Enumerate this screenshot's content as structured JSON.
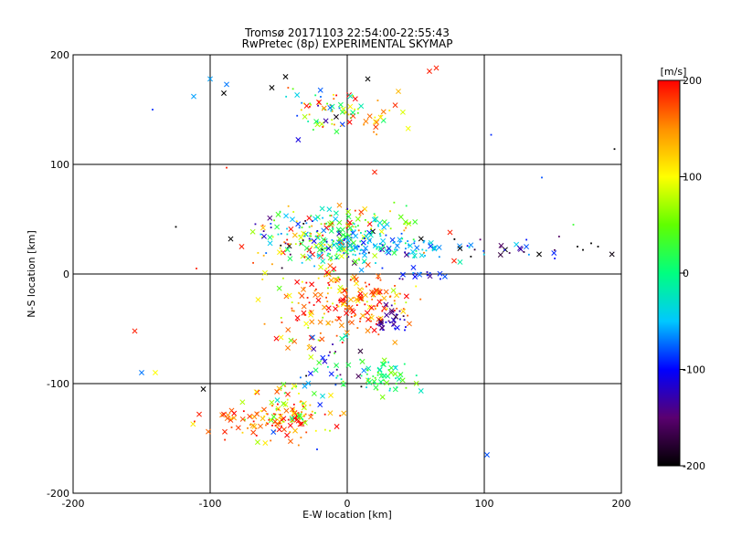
{
  "chart_data": {
    "type": "scatter",
    "title": "Tromsø 20171103 22:54:00-22:55:43",
    "subtitle": "RwPretec (8p) EXPERIMENTAL SKYMAP",
    "xlabel": "E-W location [km]",
    "ylabel": "N-S location [km]",
    "xlim": [
      -200,
      200
    ],
    "ylim": [
      -200,
      200
    ],
    "x_ticks": [
      "-200",
      "-100",
      "0",
      "100",
      "200"
    ],
    "y_ticks": [
      "-200",
      "-100",
      "0",
      "100",
      "200"
    ],
    "grid_lines": [
      -100,
      0,
      100
    ],
    "colorbar": {
      "label": "[m/s]",
      "range": [
        -200,
        200
      ],
      "ticks": [
        "200",
        "100",
        "0",
        "-100",
        "-200"
      ],
      "colors": [
        "#000000",
        "#5a0070",
        "#0000ff",
        "#00c8ff",
        "#00ff80",
        "#60ff00",
        "#ffff00",
        "#ff9000",
        "#ff0000"
      ]
    },
    "clusters": [
      {
        "x": -25,
        "y": 35,
        "sx": 22,
        "sy": 12,
        "n": 160,
        "v": 40,
        "sv": 120
      },
      {
        "x": 0,
        "y": 25,
        "sx": 12,
        "sy": 12,
        "n": 110,
        "v": -30,
        "sv": 60
      },
      {
        "x": 40,
        "y": 25,
        "sx": 18,
        "sy": 5,
        "n": 70,
        "v": -50,
        "sv": 30
      },
      {
        "x": 8,
        "y": -25,
        "sx": 20,
        "sy": 14,
        "n": 160,
        "v": 160,
        "sv": 40
      },
      {
        "x": 32,
        "y": -40,
        "sx": 6,
        "sy": 6,
        "n": 30,
        "v": -130,
        "sv": 20
      },
      {
        "x": -35,
        "y": -30,
        "sx": 18,
        "sy": 20,
        "n": 60,
        "v": 150,
        "sv": 60
      },
      {
        "x": -55,
        "y": -135,
        "sx": 22,
        "sy": 9,
        "n": 110,
        "v": 170,
        "sv": 50
      },
      {
        "x": -40,
        "y": -120,
        "sx": 12,
        "sy": 10,
        "n": 50,
        "v": 80,
        "sv": 60
      },
      {
        "x": 25,
        "y": -92,
        "sx": 12,
        "sy": 8,
        "n": 55,
        "v": 20,
        "sv": 30
      },
      {
        "x": -10,
        "y": -85,
        "sx": 14,
        "sy": 15,
        "n": 40,
        "v": -60,
        "sv": 90
      },
      {
        "x": -20,
        "y": 150,
        "sx": 14,
        "sy": 10,
        "n": 55,
        "v": 60,
        "sv": 110
      },
      {
        "x": 15,
        "y": 145,
        "sx": 14,
        "sy": 8,
        "n": 35,
        "v": 130,
        "sv": 70
      },
      {
        "x": 110,
        "y": 22,
        "sx": 40,
        "sy": 6,
        "n": 35,
        "v": -120,
        "sv": 90
      },
      {
        "x": 20,
        "y": 50,
        "sx": 15,
        "sy": 8,
        "n": 30,
        "v": 80,
        "sv": 60
      },
      {
        "x": 50,
        "y": 0,
        "sx": 10,
        "sy": 3,
        "n": 18,
        "v": -100,
        "sv": 30
      }
    ],
    "outliers": [
      {
        "x": -155,
        "y": -52,
        "v": 190,
        "m": "x"
      },
      {
        "x": -150,
        "y": -90,
        "v": -70,
        "m": "x"
      },
      {
        "x": -140,
        "y": -90,
        "v": 100,
        "m": "x"
      },
      {
        "x": -105,
        "y": -105,
        "v": -200,
        "m": "x"
      },
      {
        "x": -100,
        "y": 178,
        "v": -60,
        "m": "x"
      },
      {
        "x": -112,
        "y": 162,
        "v": -60,
        "m": "x"
      },
      {
        "x": -90,
        "y": 165,
        "v": -200,
        "m": "x"
      },
      {
        "x": -88,
        "y": 173,
        "v": -70,
        "m": "x"
      },
      {
        "x": -55,
        "y": 170,
        "v": -200,
        "m": "x"
      },
      {
        "x": -45,
        "y": 180,
        "v": -200,
        "m": "x"
      },
      {
        "x": 60,
        "y": 185,
        "v": 190,
        "m": "x"
      },
      {
        "x": 65,
        "y": 188,
        "v": 190,
        "m": "x"
      },
      {
        "x": 15,
        "y": 178,
        "v": -200,
        "m": "x"
      },
      {
        "x": 102,
        "y": -165,
        "v": -80,
        "m": "x"
      },
      {
        "x": 20,
        "y": 93,
        "v": 190,
        "m": "x"
      },
      {
        "x": -90,
        "y": -128,
        "v": 190,
        "m": "x"
      },
      {
        "x": -108,
        "y": -128,
        "v": 190,
        "m": "x"
      },
      {
        "x": -85,
        "y": 32,
        "v": -200,
        "m": "x"
      },
      {
        "x": -77,
        "y": 25,
        "v": 190,
        "m": "x"
      },
      {
        "x": 75,
        "y": 38,
        "v": 190,
        "m": "x"
      },
      {
        "x": 78,
        "y": 12,
        "v": 190,
        "m": "x"
      },
      {
        "x": -142,
        "y": 150,
        "v": -90,
        "m": "d"
      },
      {
        "x": -125,
        "y": 43,
        "v": -200,
        "m": "d"
      },
      {
        "x": -88,
        "y": 97,
        "v": 190,
        "m": "d"
      },
      {
        "x": 105,
        "y": 127,
        "v": -90,
        "m": "d"
      },
      {
        "x": 142,
        "y": 88,
        "v": -80,
        "m": "d"
      },
      {
        "x": 195,
        "y": 114,
        "v": -200,
        "m": "d"
      },
      {
        "x": 165,
        "y": 45,
        "v": 30,
        "m": "d"
      },
      {
        "x": 168,
        "y": 25,
        "v": -200,
        "m": "d"
      },
      {
        "x": 172,
        "y": 22,
        "v": -200,
        "m": "d"
      },
      {
        "x": 178,
        "y": 28,
        "v": -200,
        "m": "d"
      },
      {
        "x": 183,
        "y": 25,
        "v": -200,
        "m": "d"
      },
      {
        "x": -22,
        "y": -160,
        "v": -90,
        "m": "d"
      },
      {
        "x": -110,
        "y": 5,
        "v": 190,
        "m": "d"
      }
    ],
    "seed": 20171103
  }
}
